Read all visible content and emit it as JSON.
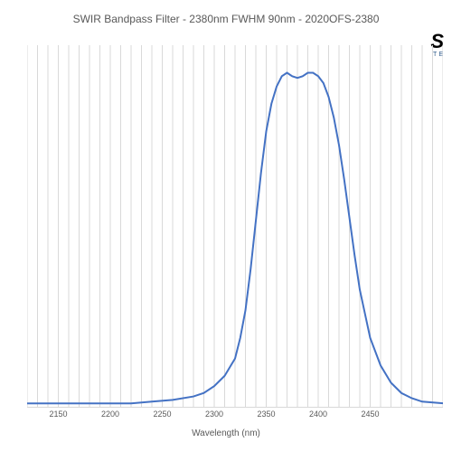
{
  "chart": {
    "type": "line",
    "title": "SWIR Bandpass Filter - 2380nm FWHM 90nm - 2020OFS-2380",
    "title_fontsize": 12,
    "title_color": "#595959",
    "x_label": "Wavelength (nm)",
    "x_label_fontsize": 10,
    "x_label_color": "#595959",
    "xlim": [
      2120,
      2520
    ],
    "x_ticks": [
      2150,
      2200,
      2250,
      2300,
      2350,
      2400,
      2450
    ],
    "x_minor_step": 10,
    "ylim": [
      0,
      105
    ],
    "line_color": "#4472c4",
    "line_width": 2,
    "grid_color": "#d9d9d9",
    "background_color": "#ffffff",
    "tick_fontsize": 9,
    "tick_color": "#595959",
    "logo": {
      "main_text": "S",
      "sub_text": "TE",
      "main_color": "#000000",
      "sub_color": "#2d5a8a"
    },
    "series": {
      "x": [
        2120,
        2140,
        2160,
        2180,
        2200,
        2220,
        2240,
        2260,
        2280,
        2290,
        2300,
        2310,
        2320,
        2325,
        2330,
        2335,
        2340,
        2345,
        2350,
        2355,
        2360,
        2365,
        2370,
        2375,
        2380,
        2385,
        2390,
        2395,
        2400,
        2405,
        2410,
        2415,
        2420,
        2425,
        2430,
        2435,
        2440,
        2450,
        2460,
        2470,
        2480,
        2490,
        2500,
        2520
      ],
      "y": [
        1,
        1,
        1,
        1,
        1,
        1,
        1.5,
        2,
        3,
        4,
        6,
        9,
        14,
        20,
        28,
        40,
        54,
        68,
        80,
        88,
        93,
        96,
        97,
        96,
        95.5,
        96,
        97,
        97,
        96,
        94,
        90,
        84,
        76,
        66,
        55,
        44,
        34,
        20,
        12,
        7,
        4,
        2.5,
        1.5,
        1
      ]
    }
  }
}
